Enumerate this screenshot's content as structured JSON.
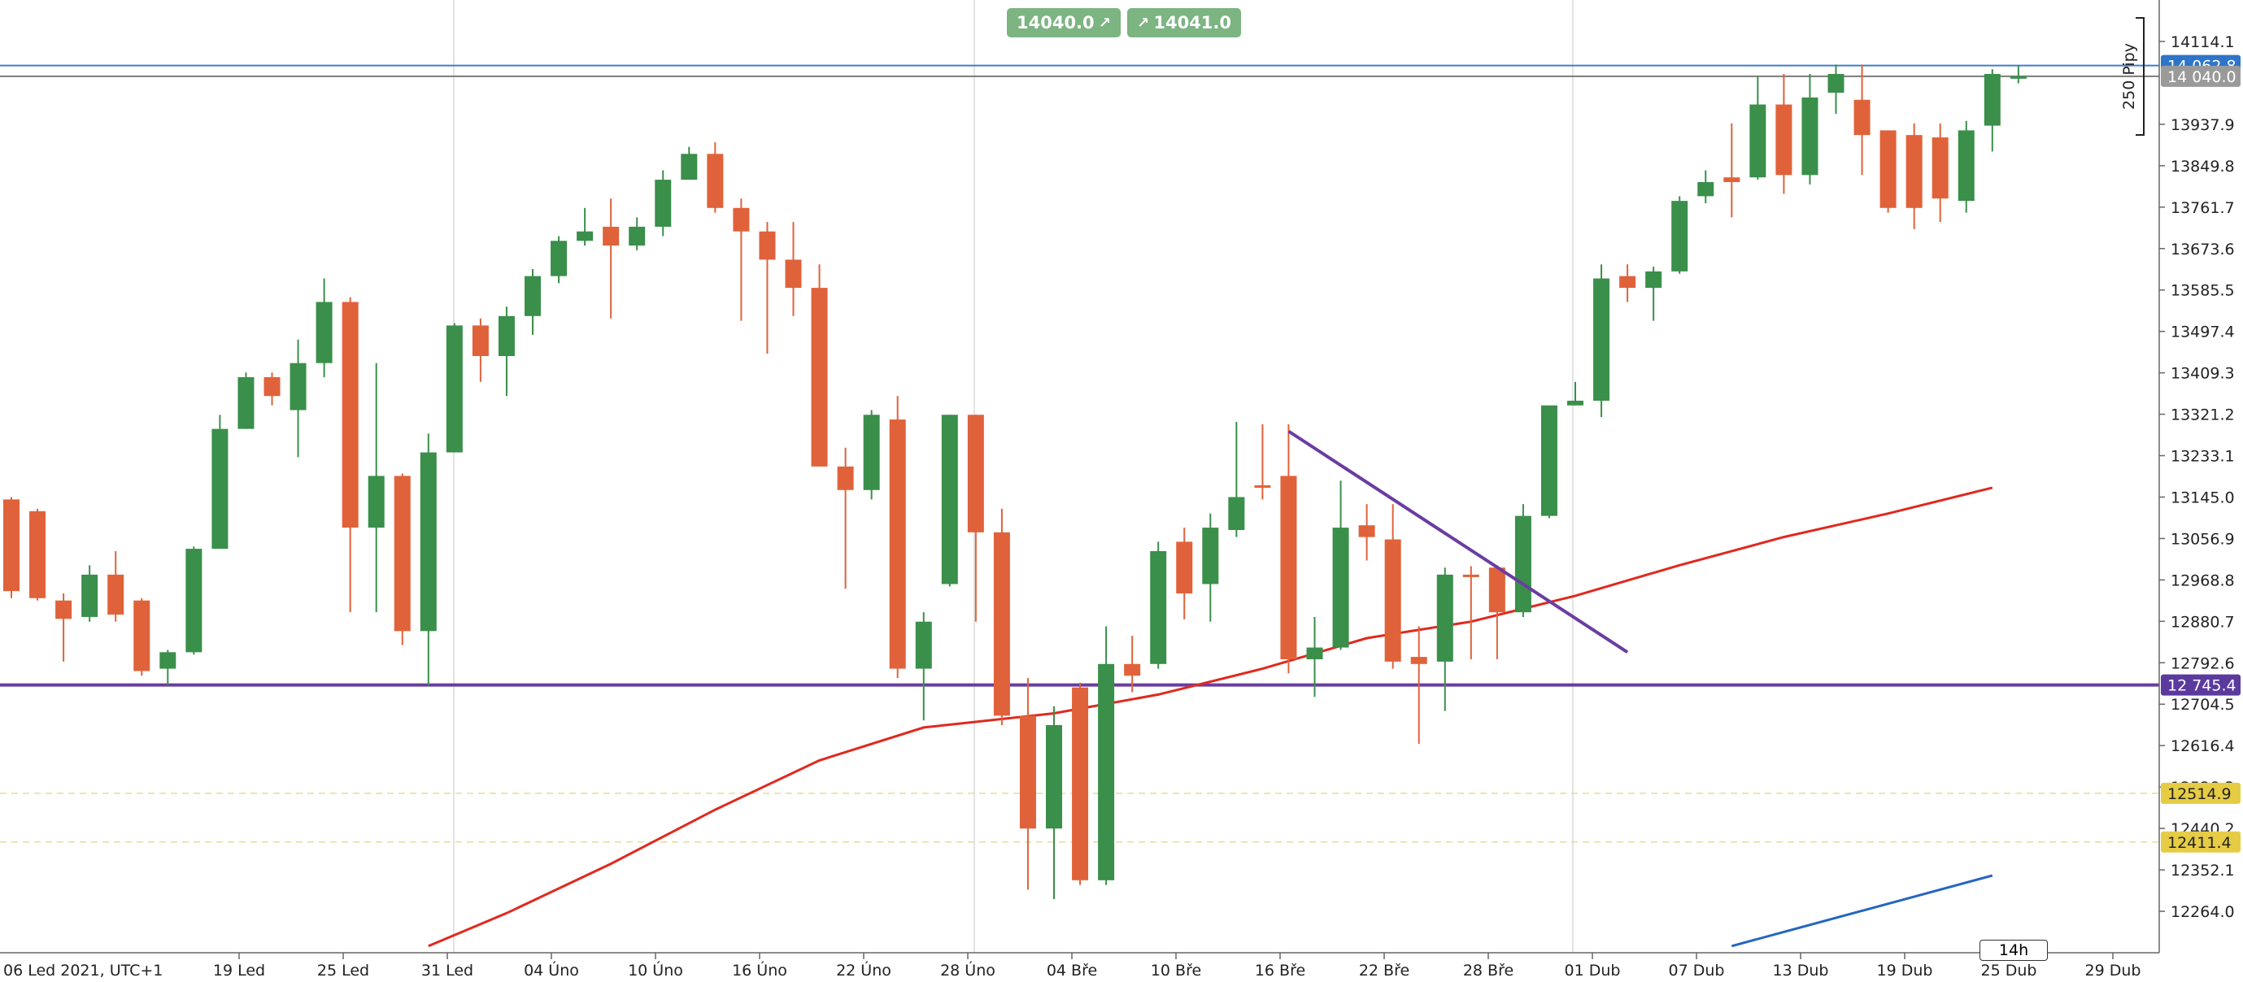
{
  "toolbar": {
    "sell_price": "14040.0",
    "buy_price": "14041.0",
    "sell_arrow": "↗",
    "buy_arrow": "↗"
  },
  "markers": {
    "pips_label": "250 Pipy",
    "timeframe": "14h"
  },
  "colors": {
    "bull": "#3a8f4a",
    "bear": "#e0623a",
    "sma_red": "#e0291f",
    "sma_blue": "#2466c0",
    "purple": "#6a3da0",
    "price_line": "#3a7fd0",
    "yellow_badge": "#e6cc45"
  },
  "chart_data": {
    "type": "candlestick",
    "title": "",
    "x_labels": [
      "06 Led 2021, UTC+1",
      "19 Led",
      "25 Led",
      "31 Led",
      "04 Úno",
      "10 Úno",
      "16 Úno",
      "22 Úno",
      "28 Úno",
      "04 Bře",
      "10 Bře",
      "16 Bře",
      "22 Bře",
      "28 Bře",
      "01 Dub",
      "07 Dub",
      "13 Dub",
      "19 Dub",
      "25 Dub",
      "29 Dub"
    ],
    "y_ticks": [
      "14114.1",
      "13937.9",
      "13849.8",
      "13761.7",
      "13673.6",
      "13585.5",
      "13497.4",
      "13409.3",
      "13321.2",
      "13233.1",
      "13145.0",
      "13056.9",
      "12968.8",
      "12880.7",
      "12792.6",
      "12704.5",
      "12616.4",
      "12528.3",
      "12440.2",
      "12352.1",
      "12264.0"
    ],
    "y_range": [
      12210,
      14160
    ],
    "price_badges": [
      {
        "label": "14 062.8",
        "value": 14062.8,
        "color": "#2e74c9"
      },
      {
        "label": "14 040.0",
        "value": 14040.0,
        "color": "#9a9a9a"
      },
      {
        "label": "12 745.4",
        "value": 12745.4,
        "color": "#5b3a9e"
      },
      {
        "label": "12514.9",
        "value": 12514.9,
        "color": "#e6cc45"
      },
      {
        "label": "12411.4",
        "value": 12411.4,
        "color": "#e6cc45"
      }
    ],
    "candles": [
      [
        13140,
        12945,
        13145,
        12930
      ],
      [
        13115,
        12930,
        13120,
        12925
      ],
      [
        12925,
        12886,
        12940,
        12795
      ],
      [
        12890,
        12980,
        13000,
        12880
      ],
      [
        12980,
        12895,
        13030,
        12880
      ],
      [
        12925,
        12775,
        12930,
        12765
      ],
      [
        12780,
        12815,
        12820,
        12745
      ],
      [
        12815,
        13035,
        13040,
        12810
      ],
      [
        13035,
        13290,
        13320,
        13035
      ],
      [
        13290,
        13400,
        13410,
        13290
      ],
      [
        13400,
        13360,
        13410,
        13340
      ],
      [
        13330,
        13430,
        13480,
        13230
      ],
      [
        13430,
        13560,
        13610,
        13400
      ],
      [
        13560,
        13080,
        13570,
        12900
      ],
      [
        13080,
        13190,
        13430,
        12900
      ],
      [
        13190,
        12860,
        13195,
        12830
      ],
      [
        12860,
        13240,
        13280,
        12745
      ],
      [
        13240,
        13510,
        13515,
        13240
      ],
      [
        13510,
        13445,
        13525,
        13390
      ],
      [
        13445,
        13530,
        13550,
        13360
      ],
      [
        13530,
        13615,
        13630,
        13490
      ],
      [
        13615,
        13690,
        13700,
        13600
      ],
      [
        13690,
        13710,
        13760,
        13680
      ],
      [
        13720,
        13680,
        13780,
        13525
      ],
      [
        13680,
        13720,
        13740,
        13670
      ],
      [
        13720,
        13820,
        13840,
        13700
      ],
      [
        13820,
        13875,
        13890,
        13820
      ],
      [
        13875,
        13760,
        13900,
        13750
      ],
      [
        13760,
        13710,
        13780,
        13520
      ],
      [
        13710,
        13650,
        13730,
        13450
      ],
      [
        13650,
        13590,
        13730,
        13530
      ],
      [
        13590,
        13210,
        13640,
        13210
      ],
      [
        13210,
        13160,
        13250,
        12950
      ],
      [
        13160,
        13320,
        13330,
        13140
      ],
      [
        13310,
        12780,
        13360,
        12760
      ],
      [
        12780,
        12880,
        12900,
        12670
      ],
      [
        12960,
        13320,
        13320,
        12955
      ],
      [
        13320,
        13070,
        13320,
        12880
      ],
      [
        13070,
        12680,
        13120,
        12660
      ],
      [
        12680,
        12440,
        12760,
        12310
      ],
      [
        12440,
        12660,
        12700,
        12290
      ],
      [
        12740,
        12330,
        12750,
        12320
      ],
      [
        12330,
        12790,
        12870,
        12320
      ],
      [
        12790,
        12765,
        12850,
        12730
      ],
      [
        12790,
        13030,
        13050,
        12780
      ],
      [
        13050,
        12940,
        13080,
        12885
      ],
      [
        12960,
        13080,
        13110,
        12880
      ],
      [
        13075,
        13145,
        13305,
        13060
      ],
      [
        13170,
        13165,
        13300,
        13140
      ],
      [
        13190,
        12800,
        13300,
        12770
      ],
      [
        12800,
        12825,
        12890,
        12720
      ],
      [
        12825,
        13080,
        13180,
        12820
      ],
      [
        13085,
        13060,
        13130,
        13010
      ],
      [
        13055,
        12795,
        13130,
        12780
      ],
      [
        12805,
        12790,
        12870,
        12620
      ],
      [
        12795,
        12980,
        12995,
        12690
      ],
      [
        12980,
        12978,
        12998,
        12800
      ],
      [
        12995,
        12900,
        13000,
        12800
      ],
      [
        12900,
        13105,
        13130,
        12890
      ],
      [
        13105,
        13340,
        13340,
        13100
      ],
      [
        13340,
        13350,
        13390,
        13340
      ],
      [
        13350,
        13610,
        13640,
        13315
      ],
      [
        13615,
        13590,
        13640,
        13560
      ],
      [
        13590,
        13625,
        13635,
        13520
      ],
      [
        13625,
        13775,
        13785,
        13620
      ],
      [
        13785,
        13815,
        13840,
        13770
      ],
      [
        13825,
        13815,
        13940,
        13740
      ],
      [
        13825,
        13980,
        14040,
        13820
      ],
      [
        13980,
        13830,
        14045,
        13790
      ],
      [
        13830,
        13995,
        14045,
        13810
      ],
      [
        14005,
        14045,
        14065,
        13960
      ],
      [
        13990,
        13915,
        14065,
        13830
      ],
      [
        13925,
        13760,
        13925,
        13750
      ],
      [
        13915,
        13760,
        13940,
        13715
      ],
      [
        13910,
        13780,
        13940,
        13730
      ],
      [
        13775,
        13925,
        13945,
        13750
      ],
      [
        13935,
        14045,
        14055,
        13880
      ],
      [
        14040,
        14040,
        14062,
        14025
      ]
    ],
    "sma_red": [
      [
        16,
        12190
      ],
      [
        19,
        12260
      ],
      [
        23,
        12365
      ],
      [
        27,
        12480
      ],
      [
        31,
        12585
      ],
      [
        35,
        12655
      ],
      [
        40,
        12685
      ],
      [
        44,
        12725
      ],
      [
        48,
        12780
      ],
      [
        52,
        12845
      ],
      [
        56,
        12880
      ],
      [
        60,
        12935
      ],
      [
        64,
        13000
      ],
      [
        68,
        13060
      ],
      [
        72,
        13110
      ],
      [
        76,
        13165
      ]
    ],
    "sma_blue": [
      [
        66,
        12190
      ],
      [
        71,
        12265
      ],
      [
        76,
        12340
      ]
    ],
    "trendline": [
      [
        49,
        13285
      ],
      [
        62,
        12815
      ]
    ],
    "support_level": 12745.4
  }
}
